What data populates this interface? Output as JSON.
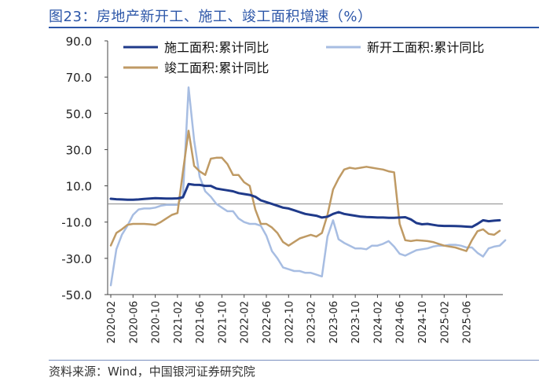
{
  "figure": {
    "title": "图23：房地产新开工、施工、竣工面积增速（%）",
    "source": "资料来源：Wind，中国银河证券研究院"
  },
  "chart_data": {
    "type": "line",
    "ylim": [
      -50,
      90
    ],
    "yticks": [
      90,
      70,
      50,
      30,
      10,
      -10,
      -30,
      -50
    ],
    "ytick_labels": [
      "90.0",
      "70.0",
      "50.0",
      "30.0",
      "10.0",
      "-10.0",
      "-30.0",
      "-50.0"
    ],
    "xtick_labels": [
      "2020-02",
      "2020-06",
      "2020-10",
      "2021-02",
      "2021-06",
      "2021-10",
      "2022-02",
      "2022-06",
      "2022-10",
      "2023-02",
      "2023-06",
      "2023-10",
      "2024-02",
      "2024-06",
      "2024-10",
      "2025-02",
      "2025-06"
    ],
    "x_start": "2020-02",
    "x_end": "2025-06",
    "grid": false,
    "legend_position": "top",
    "series": [
      {
        "name": "施工面积:累计同比",
        "color": "#1f3a8a",
        "values": [
          2.9,
          2.6,
          2.5,
          2.3,
          2.3,
          2.5,
          2.8,
          3.0,
          3.2,
          3.1,
          3.0,
          3.0,
          3.1,
          3.7,
          11.0,
          10.6,
          10.5,
          10.0,
          10.0,
          8.5,
          8.0,
          7.5,
          7.0,
          6.0,
          5.5,
          5.0,
          4.0,
          2.0,
          1.0,
          0.0,
          -1.0,
          -2.0,
          -2.5,
          -3.5,
          -4.5,
          -5.5,
          -6.0,
          -6.5,
          -7.5,
          -7.0,
          -5.5,
          -4.5,
          -5.5,
          -6.0,
          -6.5,
          -7.0,
          -7.2,
          -7.3,
          -7.5,
          -7.5,
          -7.6,
          -7.6,
          -7.5,
          -7.3,
          -8.5,
          -10.5,
          -11.2,
          -11.0,
          -11.5,
          -12.0,
          -12.1,
          -12.1,
          -12.2,
          -12.3,
          -12.5,
          -12.7,
          -11.0,
          -9.0,
          -9.5,
          -9.2,
          -9.0
        ]
      },
      {
        "name": "新开工面积:累计同比",
        "color": "#a7bde2",
        "values": [
          -44.9,
          -25.0,
          -17.0,
          -12.0,
          -6.0,
          -3.0,
          -2.5,
          -2.5,
          -2.0,
          -1.0,
          -0.5,
          -0.5,
          -0.5,
          5.0,
          64.3,
          35.0,
          15.0,
          7.0,
          4.0,
          0.0,
          -2.0,
          -4.0,
          -4.0,
          -8.0,
          -10.0,
          -11.0,
          -11.0,
          -12.0,
          -17.5,
          -26.0,
          -30.0,
          -35.0,
          -36.0,
          -37.0,
          -37.0,
          -38.0,
          -38.0,
          -39.0,
          -40.0,
          -18.0,
          -9.0,
          -19.5,
          -21.5,
          -23.0,
          -24.5,
          -24.5,
          -25.0,
          -23.0,
          -23.0,
          -22.0,
          -20.5,
          -23.5,
          -27.5,
          -28.5,
          -27.0,
          -25.5,
          -25.0,
          -24.5,
          -23.5,
          -23.0,
          -23.0,
          -22.5,
          -22.5,
          -23.0,
          -24.0,
          -24.0,
          -27.0,
          -29.0,
          -24.5,
          -23.5,
          -23.0,
          -20.0
        ]
      },
      {
        "name": "竣工面积:累计同比",
        "color": "#bf9a64",
        "values": [
          -22.9,
          -16.0,
          -14.0,
          -11.5,
          -11.0,
          -11.0,
          -11.0,
          -11.2,
          -11.5,
          -10.0,
          -8.0,
          -6.0,
          -5.0,
          18.0,
          40.4,
          21.0,
          18.0,
          16.0,
          25.0,
          25.5,
          25.5,
          22.0,
          16.0,
          16.0,
          12.0,
          10.0,
          -3.0,
          -11.0,
          -11.0,
          -13.0,
          -16.0,
          -21.0,
          -23.0,
          -21.0,
          -19.0,
          -18.0,
          -17.0,
          -18.0,
          -16.0,
          -6.0,
          8.0,
          14.0,
          19.0,
          20.0,
          19.5,
          20.0,
          20.5,
          20.0,
          19.5,
          19.0,
          18.0,
          17.5,
          -11.0,
          -20.0,
          -20.5,
          -20.0,
          -20.2,
          -20.5,
          -21.0,
          -22.0,
          -23.0,
          -23.5,
          -24.0,
          -25.0,
          -26.0,
          -20.0,
          -15.0,
          -14.0,
          -16.5,
          -17.0,
          -14.8
        ]
      }
    ]
  }
}
